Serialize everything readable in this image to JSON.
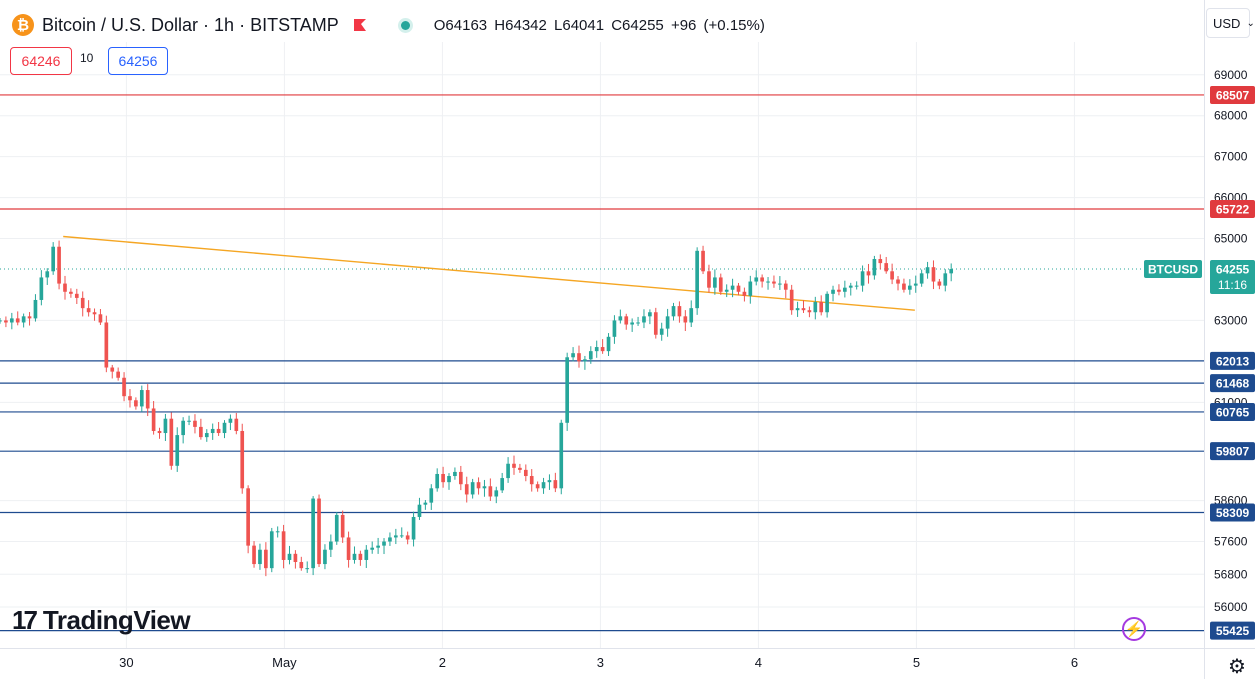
{
  "header": {
    "symbol_icon": "bitcoin-icon",
    "title": "Bitcoin / U.S. Dollar · 1h · BITSTAMP",
    "ohlc": "O64163 H64342 L64041 C64255 +96 (+0.15%)"
  },
  "quotes": {
    "sell": "64246",
    "spread": "10",
    "buy": "64256"
  },
  "currency_selector": "USD",
  "logo": {
    "mark": "17",
    "text": "TradingView"
  },
  "colors": {
    "up": "#26a69a",
    "down": "#ef5350",
    "support": "#1e4b8f",
    "resistance": "#e03a3e",
    "trendline": "#f5a623",
    "grid": "#eef0f3"
  },
  "chart_data": {
    "type": "candlestick",
    "symbol": "BTCUSD",
    "interval": "1h",
    "y_axis": {
      "range": [
        55000,
        69800
      ],
      "ticks": [
        56000,
        56800,
        57600,
        58600,
        61000,
        63000,
        65000,
        66000,
        67000,
        68000,
        69000
      ]
    },
    "x_axis": {
      "range": [
        0,
        7.62
      ],
      "ticks": [
        {
          "label": "30",
          "pos": 0.8
        },
        {
          "label": "May",
          "pos": 1.8
        },
        {
          "label": "2",
          "pos": 2.8
        },
        {
          "label": "3",
          "pos": 3.8
        },
        {
          "label": "4",
          "pos": 4.8
        },
        {
          "label": "5",
          "pos": 5.8
        },
        {
          "label": "6",
          "pos": 6.8
        }
      ]
    },
    "resistance_levels": [
      68507,
      65722
    ],
    "support_levels": [
      62013,
      61468,
      60765,
      59807,
      58309,
      55425
    ],
    "trendline": {
      "from": {
        "t": 0.4,
        "price": 65050
      },
      "to": {
        "t": 5.79,
        "price": 63250
      }
    },
    "last_price": {
      "label": "BTCUSD",
      "value": 64255,
      "countdown": "11:16"
    },
    "closes": [
      63000,
      62950,
      63050,
      62950,
      63100,
      63050,
      63500,
      64050,
      64200,
      64800,
      63900,
      63700,
      63650,
      63550,
      63300,
      63200,
      63150,
      62950,
      61850,
      61750,
      61600,
      61150,
      61050,
      60900,
      61300,
      60850,
      60300,
      60250,
      60600,
      59450,
      60200,
      60550,
      60550,
      60400,
      60150,
      60250,
      60350,
      60250,
      60500,
      60600,
      60300,
      58900,
      57500,
      57050,
      57400,
      56950,
      57850,
      57850,
      57150,
      57300,
      57100,
      56950,
      56950,
      58650,
      57050,
      57400,
      57600,
      58250,
      57700,
      57150,
      57300,
      57150,
      57400,
      57450,
      57500,
      57600,
      57700,
      57750,
      57750,
      57650,
      58200,
      58500,
      58550,
      58900,
      59250,
      59050,
      59200,
      59300,
      59000,
      58750,
      59050,
      58900,
      58950,
      58700,
      58850,
      59150,
      59500,
      59400,
      59350,
      59200,
      59000,
      58900,
      59050,
      59100,
      58900,
      60500,
      62100,
      62200,
      62000,
      62050,
      62250,
      62350,
      62250,
      62600,
      63000,
      63100,
      62900,
      62950,
      62950,
      63100,
      63200,
      62650,
      62800,
      63100,
      63350,
      63100,
      62950,
      63300,
      64700,
      64200,
      63800,
      64050,
      63700,
      63750,
      63850,
      63700,
      63600,
      63950,
      64050,
      63950,
      63950,
      63900,
      63900,
      63750,
      63250,
      63300,
      63250,
      63200,
      63450,
      63200,
      63650,
      63750,
      63700,
      63800,
      63850,
      63850,
      64200,
      64100,
      64500,
      64400,
      64200,
      64000,
      63900,
      63750,
      63850,
      63900,
      64150,
      64300,
      63950,
      63850,
      64150,
      64255
    ]
  }
}
